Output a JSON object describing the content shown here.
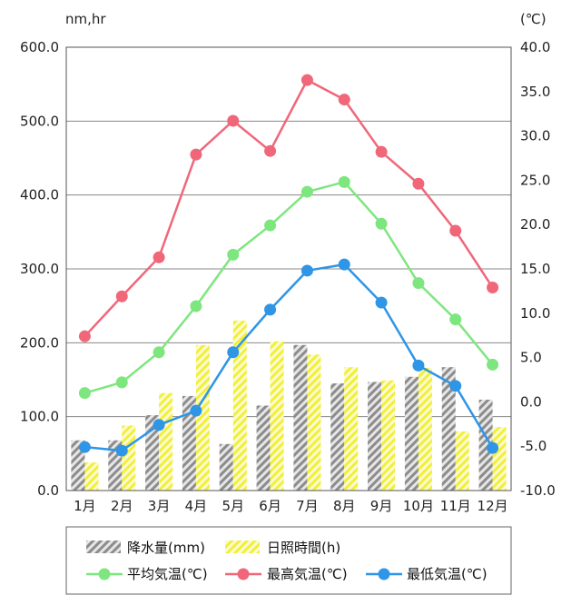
{
  "chart_data": {
    "type": "bar+line",
    "categories": [
      "1月",
      "2月",
      "3月",
      "4月",
      "5月",
      "6月",
      "7月",
      "8月",
      "9月",
      "10月",
      "11月",
      "12月"
    ],
    "left_axis": {
      "unit": "nm,hr",
      "ylim": [
        0,
        600
      ],
      "ticks": [
        "0.0",
        "100.0",
        "200.0",
        "300.0",
        "400.0",
        "500.0",
        "600.0"
      ]
    },
    "right_axis": {
      "unit": "(℃)",
      "ylim": [
        -10,
        40
      ],
      "ticks": [
        "-10.0",
        "-5.0",
        "0.0",
        "5.0",
        "10.0",
        "15.0",
        "20.0",
        "25.0",
        "30.0",
        "35.0",
        "40.0"
      ]
    },
    "grid": true,
    "legend_position": "bottom",
    "bars": [
      {
        "name": "降水量(mm)",
        "axis": "left",
        "pattern": "gray-hatch",
        "color": "#8c8c8c",
        "values": [
          68,
          68,
          102,
          128,
          63,
          115,
          197,
          145,
          147,
          154,
          167,
          123
        ]
      },
      {
        "name": "日照時間(h)",
        "axis": "left",
        "pattern": "yellow-hatch",
        "color": "#f2ef3a",
        "values": [
          38,
          88,
          132,
          197,
          230,
          202,
          184,
          167,
          149,
          166,
          80,
          86
        ]
      }
    ],
    "lines": [
      {
        "name": "平均気温(℃)",
        "axis": "right",
        "color": "#7ee67e",
        "values": [
          1.0,
          2.2,
          5.6,
          10.8,
          16.6,
          19.9,
          23.7,
          24.8,
          20.1,
          13.4,
          9.3,
          4.2
        ]
      },
      {
        "name": "最高気温(℃)",
        "axis": "right",
        "color": "#f0677a",
        "values": [
          7.4,
          11.9,
          16.3,
          27.9,
          31.7,
          28.3,
          36.3,
          34.1,
          28.2,
          24.6,
          19.3,
          12.9
        ]
      },
      {
        "name": "最低気温(℃)",
        "axis": "right",
        "color": "#2f95e6",
        "values": [
          -5.1,
          -5.5,
          -2.6,
          -1.0,
          5.6,
          10.4,
          14.8,
          15.5,
          11.2,
          4.1,
          1.8,
          -5.2
        ]
      }
    ]
  }
}
